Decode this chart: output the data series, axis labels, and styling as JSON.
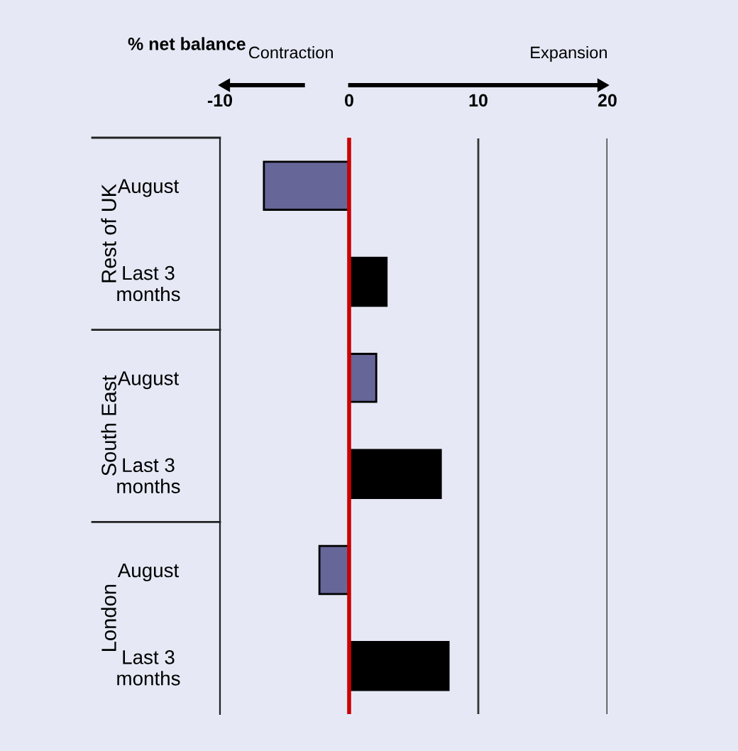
{
  "chart_data": {
    "type": "bar",
    "orientation": "horizontal",
    "xlabel": "% net balance",
    "categories": [
      "August",
      "Last 3\nmonths",
      "August",
      "Last 3\nmonths",
      "August",
      "Last 3\nmonths"
    ],
    "series": [
      {
        "color": "#666699",
        "values": [
          -6.6,
          null,
          2.1,
          null,
          -2.3,
          null
        ]
      },
      {
        "color": "#000000",
        "values": [
          null,
          2.9,
          null,
          7.1,
          null,
          7.7
        ]
      }
    ],
    "xlim": [
      -10,
      20
    ],
    "xticks": [
      -10,
      0,
      10,
      20
    ],
    "ref_lines": [
      {
        "axis": "x",
        "value": 10,
        "color": "#333333"
      },
      {
        "axis": "x",
        "value": 20,
        "color": "#333333"
      },
      {
        "axis": "x",
        "value": 0,
        "color": "#cc0000"
      }
    ],
    "annotations": [
      "Contraction",
      "Expansion",
      "Rest of UK",
      "South East",
      "London"
    ]
  }
}
